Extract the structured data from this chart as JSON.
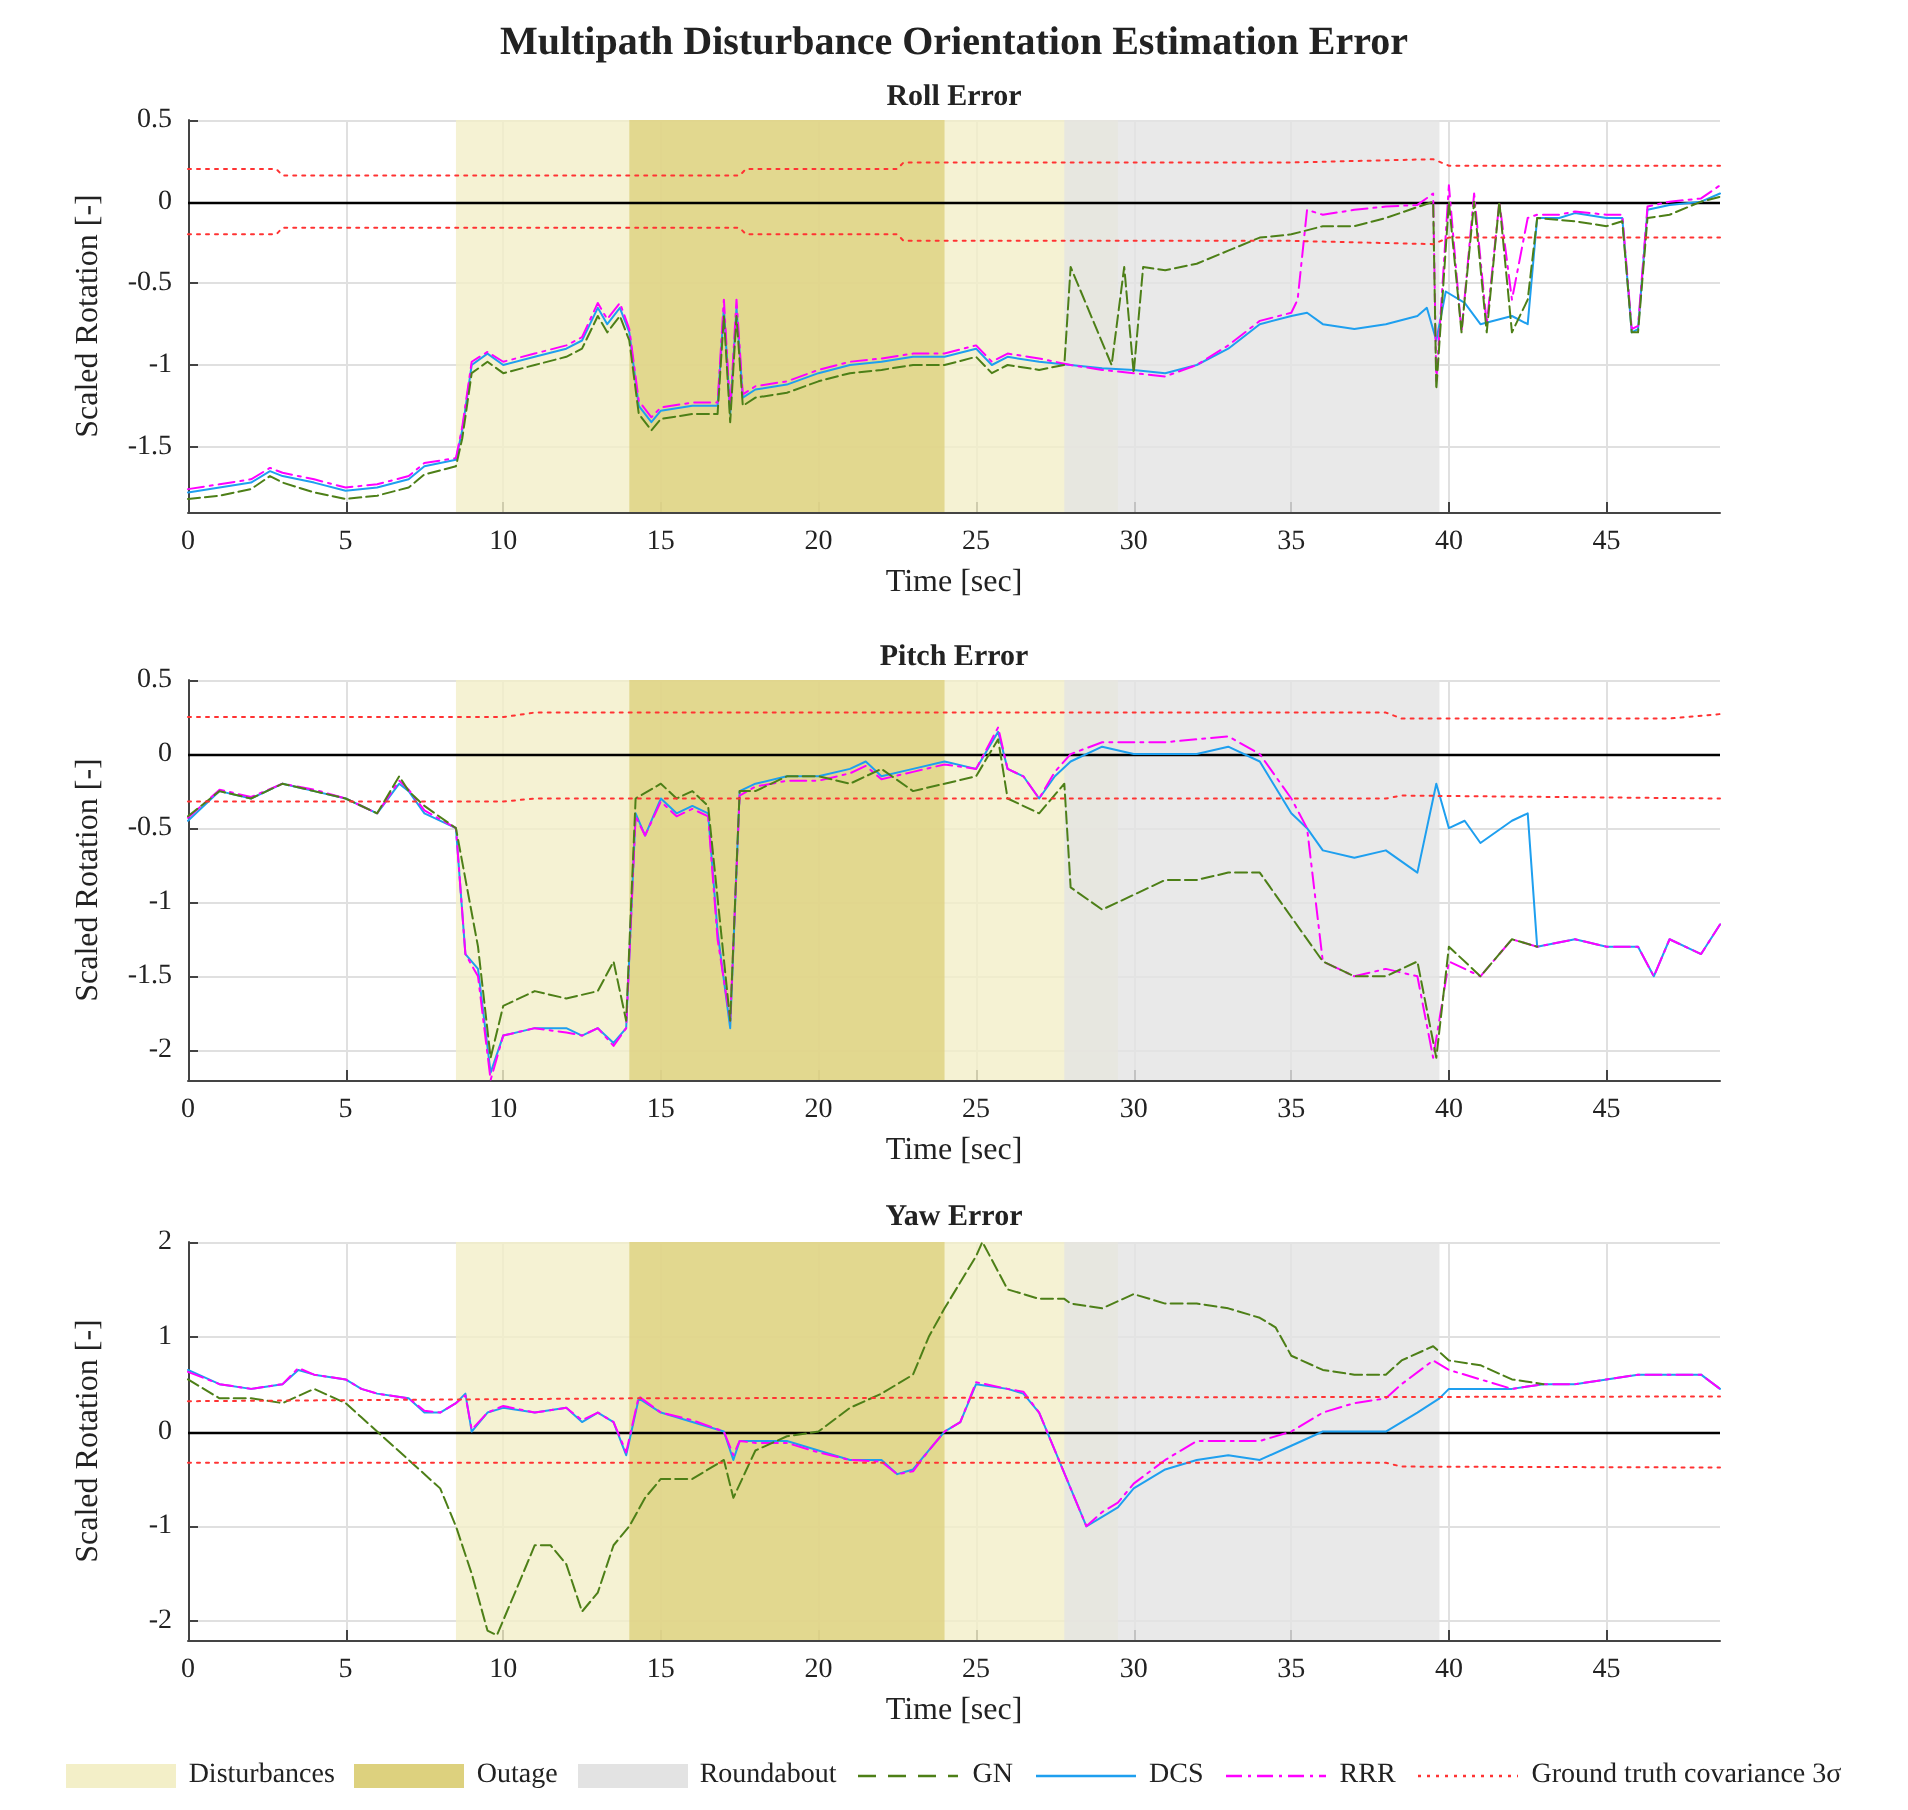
{
  "chart_data": [
    {
      "type": "line",
      "title": "Multipath Disturbance Orientation Estimation Error",
      "subtitle": "Roll Error",
      "xlabel": "Time [sec]",
      "ylabel": "Scaled Rotation [-]",
      "xlim": [
        0,
        48.6
      ],
      "xticks": [
        0,
        5,
        10,
        15,
        20,
        25,
        30,
        35,
        40,
        45
      ],
      "ylim": [
        -1.9,
        0.5
      ],
      "yticks": [
        -1.5,
        -1,
        -0.5,
        0,
        0.5
      ],
      "grid": true,
      "marker": "none",
      "legend": false,
      "bands": [
        {
          "axis": "x",
          "from": 8.5,
          "to": 29.5,
          "color": "#f3efc8"
        },
        {
          "axis": "x",
          "from": 14,
          "to": 24,
          "color": "#ddd17e"
        },
        {
          "axis": "x",
          "from": 27.8,
          "to": 39.7,
          "color": "#e3e3e3"
        }
      ],
      "ref_lines": [
        {
          "axis": "y",
          "value": 0,
          "color": "#000000"
        }
      ],
      "series": [
        {
          "color": "#4d7f17",
          "line_style": "dashed",
          "x": [
            0,
            1,
            2,
            2.6,
            3,
            4,
            5,
            6,
            7,
            7.5,
            8.5,
            8.7,
            9,
            9.5,
            10,
            11,
            12,
            12.5,
            13,
            13.3,
            13.7,
            14,
            14.3,
            14.7,
            15,
            16,
            16.8,
            17,
            17.2,
            17.4,
            17.6,
            18,
            19,
            20,
            21,
            22,
            23,
            24,
            25,
            25.5,
            26,
            27,
            27.8,
            28,
            29.3,
            29.7,
            30,
            30.3,
            31,
            32,
            33,
            34,
            35,
            36,
            37,
            38,
            39.5,
            39.6,
            40,
            40.4,
            40.8,
            41.2,
            41.6,
            42,
            42.5,
            42.8,
            44,
            45,
            45.5,
            45.8,
            46,
            46.3,
            47,
            48,
            48.6
          ],
          "values": [
            -1.82,
            -1.8,
            -1.76,
            -1.68,
            -1.72,
            -1.78,
            -1.82,
            -1.8,
            -1.75,
            -1.67,
            -1.62,
            -1.45,
            -1.05,
            -0.98,
            -1.05,
            -1.0,
            -0.95,
            -0.9,
            -0.7,
            -0.8,
            -0.7,
            -0.85,
            -1.3,
            -1.4,
            -1.33,
            -1.3,
            -1.3,
            -0.7,
            -1.35,
            -0.7,
            -1.25,
            -1.2,
            -1.17,
            -1.1,
            -1.05,
            -1.03,
            -1.0,
            -1.0,
            -0.95,
            -1.05,
            -1.0,
            -1.03,
            -1.0,
            -0.4,
            -1.0,
            -0.4,
            -1.05,
            -0.4,
            -0.42,
            -0.38,
            -0.3,
            -0.22,
            -0.2,
            -0.15,
            -0.15,
            -0.1,
            0.0,
            -1.15,
            0.0,
            -0.8,
            0.0,
            -0.8,
            0.0,
            -0.8,
            -0.6,
            -0.1,
            -0.12,
            -0.15,
            -0.12,
            -0.8,
            -0.8,
            -0.1,
            -0.08,
            0.0,
            0.03
          ]
        },
        {
          "color": "#1e9fef",
          "line_style": "solid",
          "x": [
            0,
            1,
            2,
            2.6,
            3,
            4,
            5,
            6,
            7,
            7.5,
            8.5,
            8.7,
            9,
            9.5,
            10,
            11,
            12,
            12.5,
            13,
            13.3,
            13.7,
            14,
            14.3,
            14.7,
            15,
            16,
            16.8,
            17,
            17.2,
            17.4,
            17.6,
            18,
            19,
            20,
            21,
            22,
            23,
            24,
            25,
            25.5,
            26,
            27,
            28,
            29,
            30,
            31,
            32,
            33,
            34,
            35,
            35.5,
            36,
            37,
            38,
            39,
            39.3,
            39.6,
            39.9,
            40.5,
            41,
            42,
            42.5,
            42.8,
            43.5,
            44,
            45,
            45.5,
            45.8,
            46,
            46.3,
            47,
            48,
            48.6
          ],
          "values": [
            -1.78,
            -1.75,
            -1.72,
            -1.65,
            -1.68,
            -1.72,
            -1.77,
            -1.75,
            -1.7,
            -1.62,
            -1.58,
            -1.4,
            -1.0,
            -0.93,
            -1.0,
            -0.95,
            -0.9,
            -0.85,
            -0.65,
            -0.75,
            -0.65,
            -0.8,
            -1.25,
            -1.35,
            -1.28,
            -1.25,
            -1.25,
            -0.65,
            -1.3,
            -0.65,
            -1.2,
            -1.15,
            -1.12,
            -1.05,
            -1.0,
            -0.98,
            -0.95,
            -0.95,
            -0.9,
            -1.0,
            -0.95,
            -0.98,
            -1.0,
            -1.02,
            -1.03,
            -1.05,
            -1.0,
            -0.9,
            -0.75,
            -0.7,
            -0.68,
            -0.75,
            -0.78,
            -0.75,
            -0.7,
            -0.65,
            -0.85,
            -0.55,
            -0.62,
            -0.75,
            -0.7,
            -0.75,
            -0.1,
            -0.1,
            -0.07,
            -0.1,
            -0.1,
            -0.8,
            -0.78,
            -0.05,
            -0.02,
            0.0,
            0.05
          ]
        },
        {
          "color": "#ff00ff",
          "line_style": "dashdot",
          "x": [
            0,
            1,
            2,
            2.6,
            3,
            4,
            5,
            6,
            7,
            7.5,
            8.5,
            8.7,
            9,
            9.5,
            10,
            11,
            12,
            12.5,
            13,
            13.3,
            13.7,
            14,
            14.3,
            14.7,
            15,
            16,
            16.8,
            17,
            17.2,
            17.4,
            17.6,
            18,
            19,
            20,
            21,
            22,
            23,
            24,
            25,
            25.5,
            26,
            27,
            28,
            29,
            30,
            31,
            32,
            33,
            34,
            35,
            35.2,
            35.5,
            36,
            37,
            38,
            39,
            39.5,
            39.6,
            40,
            40.4,
            40.8,
            41.2,
            41.6,
            42,
            42.5,
            42.8,
            43.5,
            44,
            45,
            45.5,
            45.8,
            46,
            46.3,
            47,
            48,
            48.6
          ],
          "values": [
            -1.76,
            -1.73,
            -1.7,
            -1.63,
            -1.66,
            -1.7,
            -1.75,
            -1.73,
            -1.68,
            -1.6,
            -1.57,
            -1.38,
            -0.98,
            -0.92,
            -0.98,
            -0.93,
            -0.88,
            -0.83,
            -0.62,
            -0.72,
            -0.62,
            -0.78,
            -1.22,
            -1.32,
            -1.26,
            -1.23,
            -1.23,
            -0.6,
            -1.28,
            -0.6,
            -1.18,
            -1.13,
            -1.1,
            -1.03,
            -0.98,
            -0.96,
            -0.93,
            -0.93,
            -0.88,
            -0.98,
            -0.93,
            -0.96,
            -1.0,
            -1.03,
            -1.05,
            -1.07,
            -1.0,
            -0.88,
            -0.73,
            -0.68,
            -0.6,
            -0.05,
            -0.08,
            -0.05,
            -0.03,
            -0.02,
            0.05,
            -1.1,
            0.1,
            -0.8,
            0.05,
            -0.75,
            0.0,
            -0.6,
            -0.1,
            -0.08,
            -0.08,
            -0.06,
            -0.08,
            -0.08,
            -0.78,
            -0.76,
            -0.03,
            0.0,
            0.02,
            0.1
          ]
        },
        {
          "color": "#ff3333",
          "line_style": "dotted",
          "x": [
            0,
            2.8,
            3,
            17.5,
            17.7,
            22.5,
            22.7,
            35,
            39.5,
            40,
            48.6
          ],
          "values": [
            0.2,
            0.2,
            0.16,
            0.16,
            0.2,
            0.2,
            0.24,
            0.24,
            0.26,
            0.22,
            0.22
          ]
        },
        {
          "color": "#ff3333",
          "line_style": "dotted",
          "x": [
            0,
            2.8,
            3,
            17.5,
            17.7,
            22.5,
            22.7,
            35,
            39.5,
            40,
            48.6
          ],
          "values": [
            -0.2,
            -0.2,
            -0.16,
            -0.16,
            -0.2,
            -0.2,
            -0.24,
            -0.24,
            -0.26,
            -0.22,
            -0.22
          ]
        }
      ]
    },
    {
      "type": "line",
      "title": "Pitch Error",
      "xlabel": "Time [sec]",
      "ylabel": "Scaled Rotation [-]",
      "xlim": [
        0,
        48.6
      ],
      "xticks": [
        0,
        5,
        10,
        15,
        20,
        25,
        30,
        35,
        40,
        45
      ],
      "ylim": [
        -2.2,
        0.5
      ],
      "yticks": [
        -2,
        -1.5,
        -1,
        -0.5,
        0,
        0.5
      ],
      "grid": true,
      "marker": "none",
      "legend": false,
      "bands": [
        {
          "axis": "x",
          "from": 8.5,
          "to": 29.5,
          "color": "#f3efc8"
        },
        {
          "axis": "x",
          "from": 14,
          "to": 24,
          "color": "#ddd17e"
        },
        {
          "axis": "x",
          "from": 27.8,
          "to": 39.7,
          "color": "#e3e3e3"
        }
      ],
      "ref_lines": [
        {
          "axis": "y",
          "value": 0,
          "color": "#000000"
        }
      ],
      "series": [
        {
          "color": "#4d7f17",
          "line_style": "dashed",
          "x": [
            0,
            1,
            2,
            3,
            4,
            5,
            6,
            6.7,
            7,
            7.5,
            8.5,
            9.2,
            9.6,
            10,
            11,
            12,
            13,
            13.5,
            13.9,
            14.2,
            15,
            15.5,
            16,
            16.5,
            17.2,
            17.5,
            18,
            19,
            20,
            21,
            22,
            23,
            24,
            25,
            25.7,
            26,
            27,
            27.8,
            28,
            29,
            30,
            31,
            32,
            33,
            34,
            34.5,
            35,
            36,
            37,
            38,
            39,
            39.6,
            40,
            41,
            42,
            42.8
          ],
          "values": [
            -0.42,
            -0.25,
            -0.3,
            -0.2,
            -0.25,
            -0.3,
            -0.4,
            -0.15,
            -0.25,
            -0.35,
            -0.5,
            -1.3,
            -2.05,
            -1.7,
            -1.6,
            -1.65,
            -1.6,
            -1.4,
            -1.8,
            -0.3,
            -0.2,
            -0.3,
            -0.25,
            -0.35,
            -1.8,
            -0.25,
            -0.25,
            -0.15,
            -0.15,
            -0.2,
            -0.1,
            -0.25,
            -0.2,
            -0.15,
            0.1,
            -0.3,
            -0.4,
            -0.2,
            -0.9,
            -1.05,
            -0.95,
            -0.85,
            -0.85,
            -0.8,
            -0.8,
            -0.95,
            -1.1,
            -1.4,
            -1.5,
            -1.5,
            -1.4,
            -2.05,
            -1.3,
            -1.5,
            -1.25,
            -1.3
          ]
        },
        {
          "color": "#1e9fef",
          "line_style": "solid",
          "x": [
            0,
            1,
            2,
            3,
            4,
            5,
            6,
            6.7,
            7,
            7.5,
            8.5,
            8.8,
            9.2,
            9.6,
            10,
            11,
            12,
            12.5,
            13,
            13.5,
            13.9,
            14.2,
            14.5,
            15,
            15.5,
            16,
            16.5,
            16.8,
            17.2,
            17.5,
            18,
            19,
            20,
            21,
            21.5,
            22,
            23,
            24,
            25,
            25.7,
            26,
            26.5,
            27,
            27.5,
            28,
            29,
            30,
            31,
            32,
            33,
            34,
            35,
            35.5,
            36,
            37,
            38,
            39,
            39.6,
            40,
            40.5,
            41,
            42,
            42.5,
            42.8,
            44,
            45,
            46,
            46.5,
            47,
            48,
            48.6
          ],
          "values": [
            -0.45,
            -0.25,
            -0.3,
            -0.2,
            -0.25,
            -0.3,
            -0.4,
            -0.2,
            -0.25,
            -0.4,
            -0.5,
            -1.35,
            -1.45,
            -2.15,
            -1.9,
            -1.85,
            -1.85,
            -1.9,
            -1.85,
            -1.95,
            -1.85,
            -0.4,
            -0.55,
            -0.3,
            -0.4,
            -0.35,
            -0.4,
            -1.2,
            -1.85,
            -0.25,
            -0.2,
            -0.15,
            -0.15,
            -0.1,
            -0.05,
            -0.15,
            -0.1,
            -0.05,
            -0.1,
            0.15,
            -0.1,
            -0.15,
            -0.3,
            -0.15,
            -0.05,
            0.05,
            0.0,
            0.0,
            0.0,
            0.05,
            -0.05,
            -0.4,
            -0.5,
            -0.65,
            -0.7,
            -0.65,
            -0.8,
            -0.2,
            -0.5,
            -0.45,
            -0.6,
            -0.45,
            -0.4,
            -1.3,
            -1.25,
            -1.3,
            -1.3,
            -1.5,
            -1.25,
            -1.35,
            -1.15
          ]
        },
        {
          "color": "#ff00ff",
          "line_style": "dashdot",
          "x": [
            0,
            1,
            2,
            3,
            4,
            5,
            6,
            6.7,
            7,
            7.5,
            8.5,
            8.8,
            9.2,
            9.6,
            10,
            11,
            12,
            12.5,
            13,
            13.5,
            13.9,
            14.2,
            14.5,
            15,
            15.5,
            16,
            16.5,
            16.8,
            17.2,
            17.5,
            18,
            19,
            20,
            21,
            21.5,
            22,
            23,
            24,
            25,
            25.7,
            26,
            26.5,
            27,
            27.5,
            28,
            29,
            30,
            31,
            32,
            33,
            34,
            35,
            35.5,
            36,
            37,
            38,
            39,
            39.5,
            40,
            41,
            42,
            42.8,
            44,
            45,
            46,
            46.5,
            47,
            48,
            48.6
          ],
          "values": [
            -0.43,
            -0.24,
            -0.29,
            -0.2,
            -0.24,
            -0.3,
            -0.4,
            -0.18,
            -0.24,
            -0.38,
            -0.5,
            -1.35,
            -1.5,
            -2.2,
            -1.9,
            -1.85,
            -1.88,
            -1.9,
            -1.85,
            -1.97,
            -1.85,
            -0.42,
            -0.55,
            -0.32,
            -0.42,
            -0.37,
            -0.42,
            -1.25,
            -1.8,
            -0.28,
            -0.22,
            -0.18,
            -0.18,
            -0.13,
            -0.08,
            -0.17,
            -0.12,
            -0.07,
            -0.1,
            0.18,
            -0.1,
            -0.15,
            -0.3,
            -0.12,
            0.0,
            0.08,
            0.08,
            0.08,
            0.1,
            0.12,
            0.0,
            -0.3,
            -0.5,
            -1.4,
            -1.5,
            -1.45,
            -1.5,
            -2.05,
            -1.4,
            -1.5,
            -1.25,
            -1.3,
            -1.25,
            -1.3,
            -1.3,
            -1.5,
            -1.25,
            -1.35,
            -1.15
          ]
        },
        {
          "color": "#ff3333",
          "line_style": "dotted",
          "x": [
            0,
            10,
            11,
            38,
            38.5,
            47,
            48.6
          ],
          "values": [
            0.25,
            0.25,
            0.28,
            0.28,
            0.24,
            0.24,
            0.27
          ]
        },
        {
          "color": "#ff3333",
          "line_style": "dotted",
          "x": [
            0,
            10,
            11,
            38,
            38.5,
            48.6
          ],
          "values": [
            -0.32,
            -0.32,
            -0.3,
            -0.3,
            -0.28,
            -0.3
          ]
        }
      ]
    },
    {
      "type": "line",
      "title": "Yaw Error",
      "xlabel": "Time [sec]",
      "ylabel": "Scaled Rotation [-]",
      "xlim": [
        0,
        48.6
      ],
      "xticks": [
        0,
        5,
        10,
        15,
        20,
        25,
        30,
        35,
        40,
        45
      ],
      "ylim": [
        -2.2,
        2
      ],
      "yticks": [
        -2,
        -1,
        0,
        1,
        2
      ],
      "grid": true,
      "marker": "none",
      "legend": "bottom",
      "bands": [
        {
          "axis": "x",
          "from": 8.5,
          "to": 29.5,
          "color": "#f3efc8",
          "label": "Disturbances"
        },
        {
          "axis": "x",
          "from": 14,
          "to": 24,
          "color": "#ddd17e",
          "label": "Outage"
        },
        {
          "axis": "x",
          "from": 27.8,
          "to": 39.7,
          "color": "#e3e3e3",
          "label": "Roundabout"
        }
      ],
      "ref_lines": [
        {
          "axis": "y",
          "value": 0,
          "color": "#000000"
        }
      ],
      "series": [
        {
          "name": "GN",
          "color": "#4d7f17",
          "line_style": "dashed",
          "x": [
            0,
            1,
            2,
            3,
            4,
            5,
            5.5,
            6,
            7,
            8,
            8.5,
            9,
            9.5,
            9.8,
            10.5,
            11,
            11.5,
            12,
            12.5,
            13,
            13.5,
            14,
            14.5,
            15,
            16,
            17,
            17.3,
            18,
            19,
            20,
            21,
            22,
            23,
            23.5,
            24,
            25,
            25.2,
            26,
            27,
            27.8,
            28,
            29,
            30,
            31,
            32,
            33,
            34,
            34.5,
            35,
            36,
            37,
            38,
            38.5,
            39.5,
            40,
            41,
            42,
            43
          ],
          "values": [
            0.55,
            0.35,
            0.35,
            0.3,
            0.45,
            0.3,
            0.15,
            0.0,
            -0.3,
            -0.6,
            -1.0,
            -1.5,
            -2.1,
            -2.15,
            -1.6,
            -1.2,
            -1.2,
            -1.4,
            -1.9,
            -1.7,
            -1.2,
            -1.0,
            -0.7,
            -0.5,
            -0.5,
            -0.3,
            -0.7,
            -0.2,
            -0.05,
            0.0,
            0.25,
            0.4,
            0.6,
            1.0,
            1.3,
            1.85,
            2.0,
            1.5,
            1.4,
            1.4,
            1.35,
            1.3,
            1.45,
            1.35,
            1.35,
            1.3,
            1.2,
            1.1,
            0.8,
            0.65,
            0.6,
            0.6,
            0.75,
            0.9,
            0.75,
            0.7,
            0.55,
            0.5
          ]
        },
        {
          "name": "DCS",
          "color": "#1e9fef",
          "line_style": "solid",
          "x": [
            0,
            1,
            2,
            3,
            3.5,
            4,
            5,
            5.5,
            6,
            7,
            7.5,
            8,
            8.5,
            8.8,
            9,
            9.5,
            10,
            11,
            12,
            12.5,
            13,
            13.5,
            13.9,
            14.3,
            15,
            16,
            17,
            17.3,
            17.5,
            18,
            19,
            20,
            21,
            22,
            22.5,
            23,
            23.5,
            24,
            24.5,
            25,
            26,
            26.5,
            27,
            27.5,
            28,
            28.5,
            29,
            29.5,
            30,
            31,
            32,
            33,
            34,
            35,
            36,
            37,
            38,
            39,
            39.7,
            40,
            41,
            42,
            43,
            44,
            45,
            46,
            47,
            48,
            48.6
          ],
          "values": [
            0.65,
            0.5,
            0.45,
            0.5,
            0.65,
            0.6,
            0.55,
            0.45,
            0.4,
            0.35,
            0.2,
            0.2,
            0.3,
            0.4,
            0.0,
            0.2,
            0.25,
            0.2,
            0.25,
            0.1,
            0.2,
            0.1,
            -0.25,
            0.35,
            0.2,
            0.1,
            0.0,
            -0.3,
            -0.1,
            -0.1,
            -0.1,
            -0.2,
            -0.3,
            -0.3,
            -0.45,
            -0.4,
            -0.2,
            0.0,
            0.1,
            0.5,
            0.45,
            0.4,
            0.2,
            -0.2,
            -0.6,
            -1.0,
            -0.9,
            -0.8,
            -0.6,
            -0.4,
            -0.3,
            -0.25,
            -0.3,
            -0.15,
            0.0,
            0.0,
            0.0,
            0.2,
            0.35,
            0.45,
            0.45,
            0.45,
            0.5,
            0.5,
            0.55,
            0.6,
            0.6,
            0.6,
            0.45
          ]
        },
        {
          "name": "RRR",
          "color": "#ff00ff",
          "line_style": "dashdot",
          "x": [
            0,
            1,
            2,
            3,
            3.5,
            4,
            5,
            5.5,
            6,
            7,
            7.5,
            8,
            8.5,
            8.8,
            9,
            9.5,
            10,
            11,
            12,
            12.5,
            13,
            13.5,
            13.9,
            14.3,
            15,
            16,
            17,
            17.3,
            17.5,
            18,
            19,
            20,
            21,
            22,
            22.5,
            23,
            23.5,
            24,
            24.5,
            25,
            26,
            26.5,
            27,
            27.5,
            28,
            28.5,
            29,
            29.5,
            30,
            31,
            32,
            33,
            34,
            35,
            36,
            37,
            38,
            38.5,
            39.5,
            40,
            41,
            42,
            43,
            44,
            45,
            46,
            47,
            48,
            48.6
          ],
          "values": [
            0.63,
            0.5,
            0.45,
            0.5,
            0.67,
            0.6,
            0.55,
            0.45,
            0.4,
            0.35,
            0.22,
            0.2,
            0.3,
            0.38,
            0.02,
            0.2,
            0.27,
            0.2,
            0.25,
            0.12,
            0.2,
            0.1,
            -0.22,
            0.37,
            0.2,
            0.12,
            0.0,
            -0.25,
            -0.1,
            -0.12,
            -0.12,
            -0.22,
            -0.3,
            -0.32,
            -0.45,
            -0.42,
            -0.2,
            0.0,
            0.1,
            0.52,
            0.45,
            0.42,
            0.2,
            -0.2,
            -0.6,
            -1.0,
            -0.85,
            -0.75,
            -0.55,
            -0.3,
            -0.1,
            -0.1,
            -0.1,
            0.0,
            0.2,
            0.3,
            0.35,
            0.5,
            0.75,
            0.65,
            0.55,
            0.45,
            0.5,
            0.5,
            0.55,
            0.6,
            0.6,
            0.6,
            0.45
          ]
        },
        {
          "name": "Ground truth covariance 3σ",
          "color": "#ff3333",
          "line_style": "dotted",
          "x": [
            0,
            14,
            30,
            48.6
          ],
          "values": [
            0.32,
            0.35,
            0.36,
            0.37
          ]
        },
        {
          "color": "#ff3333",
          "line_style": "dotted",
          "x": [
            0,
            38,
            38.5,
            48.6
          ],
          "values": [
            -0.33,
            -0.33,
            -0.37,
            -0.38
          ]
        }
      ]
    }
  ]
}
